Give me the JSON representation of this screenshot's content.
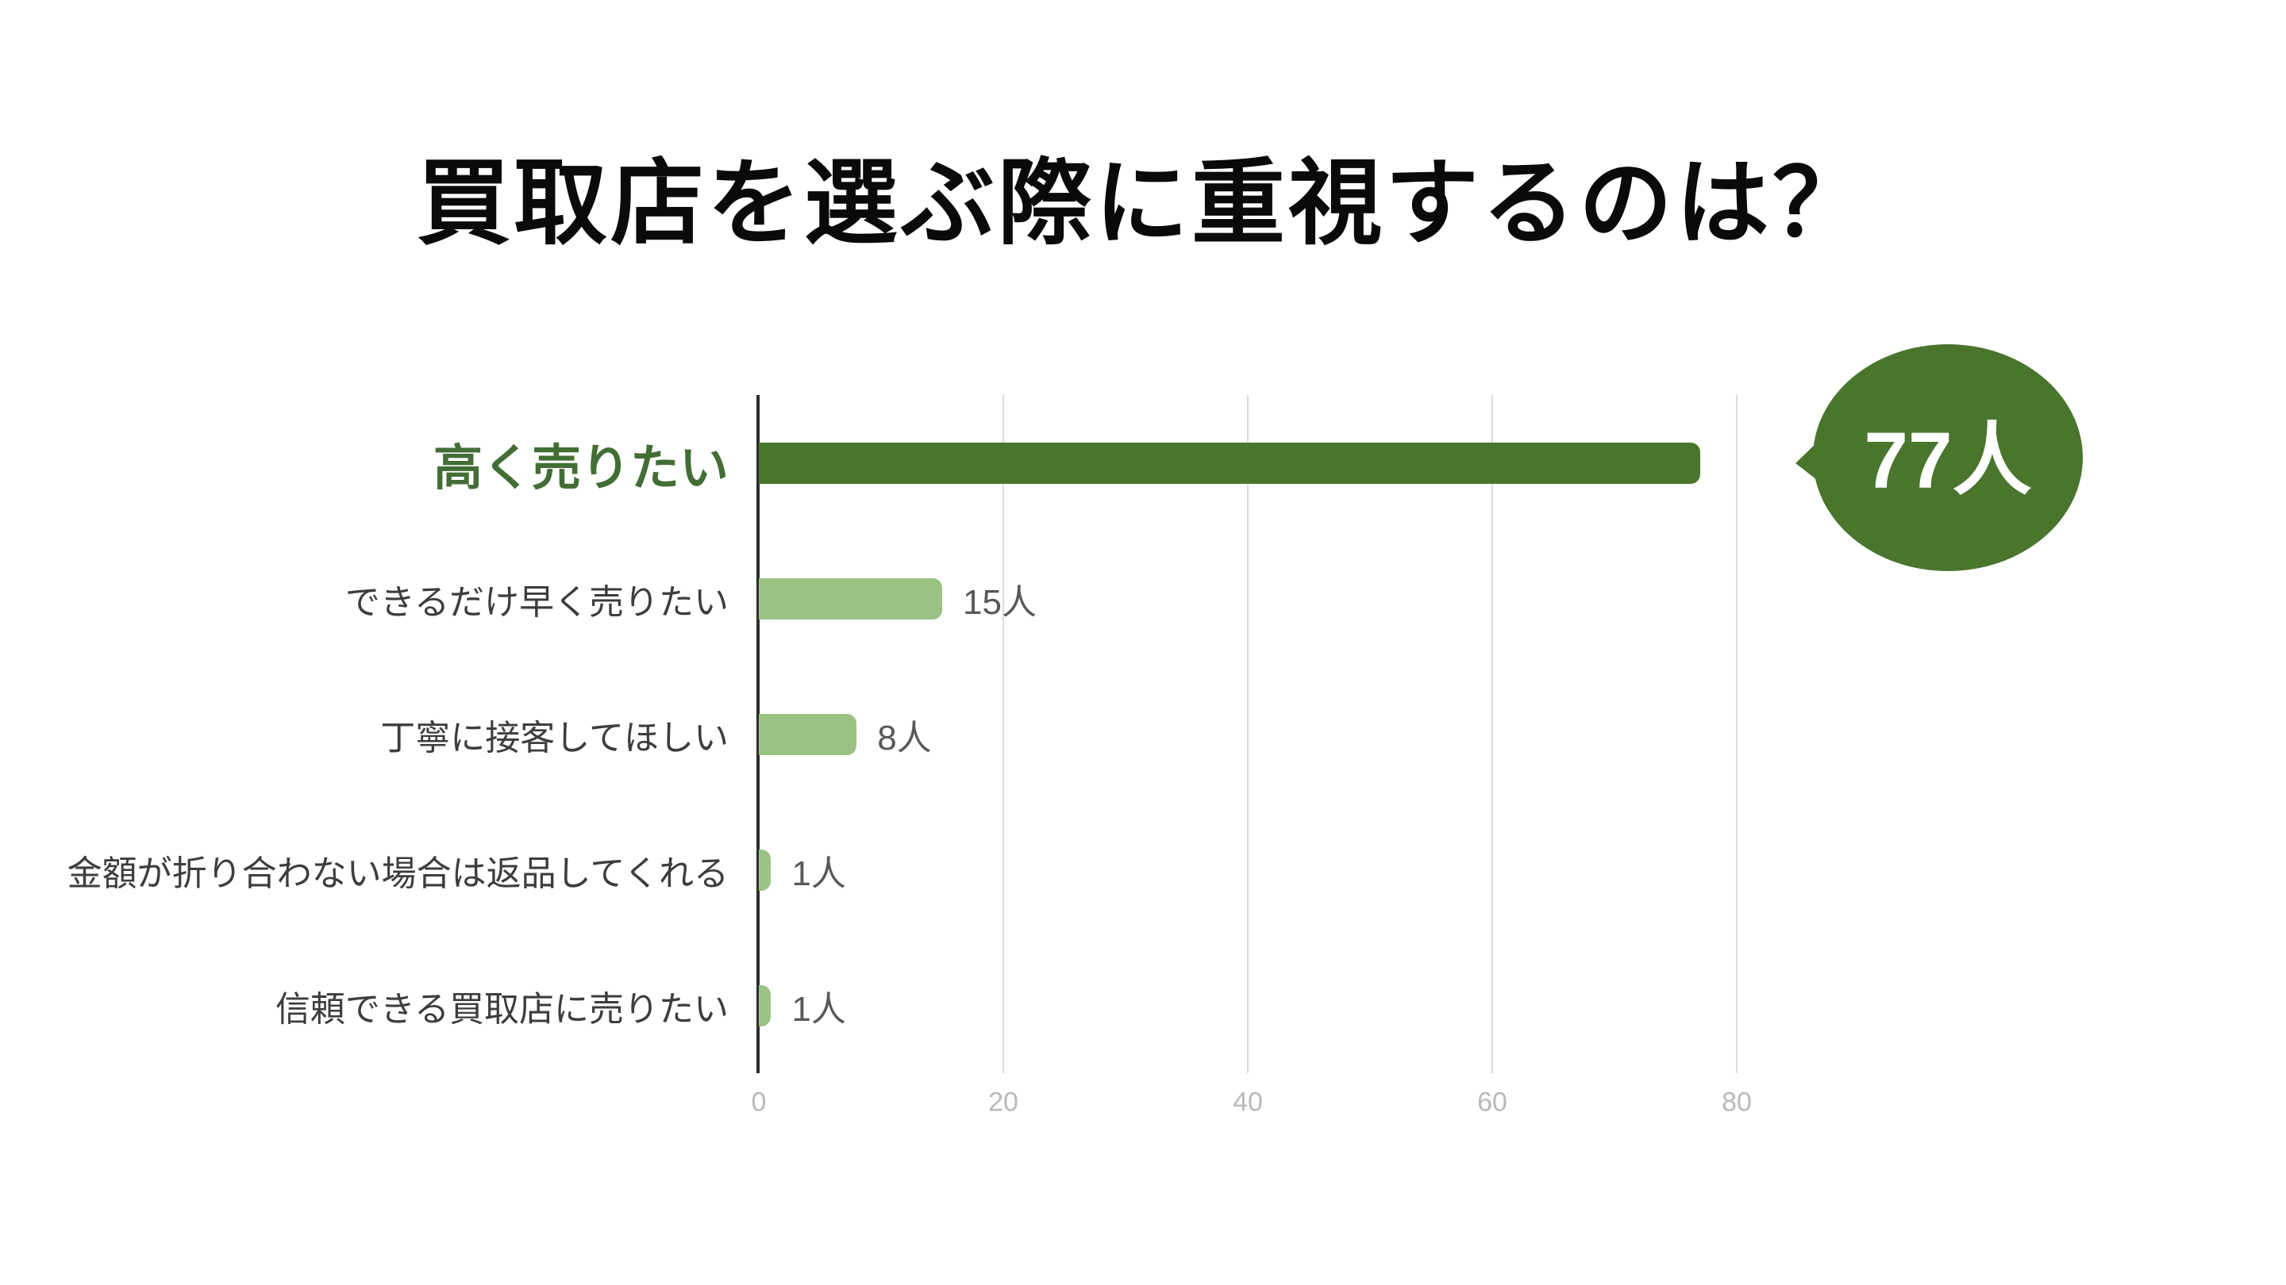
{
  "chart_data": {
    "type": "bar",
    "orientation": "horizontal",
    "title": "買取店を選ぶ際に重視するのは？",
    "categories": [
      "高く売りたい",
      "できるだけ早く売りたい",
      "丁寧に接客してほしい",
      "金額が折り合わない場合は返品してくれる",
      "信頼できる買取店に売りたい"
    ],
    "values": [
      77,
      15,
      8,
      1,
      1
    ],
    "value_labels": [
      "77人",
      "15人",
      "8人",
      "1人",
      "1人"
    ],
    "unit": "人",
    "x_ticks": [
      0,
      20,
      40,
      60,
      80
    ],
    "xlim": [
      0,
      85
    ],
    "grid": "vertical-gridlines",
    "legend": "none",
    "highlight_index": 0,
    "callout": {
      "row": 0,
      "text": "77人"
    }
  },
  "colors": {
    "bar_highlight": "#49752d",
    "bar_normal": "#9cc283",
    "highlight_label_text": "#426e36",
    "category_label_text": "#3d3d3d",
    "value_label_text": "#59595b",
    "tick_label_text": "#b9b9b9",
    "gridline": "#dbdbdb",
    "axis_line": "#2e2e2e",
    "bubble_fill": "#49752d",
    "bubble_text": "#ffffff",
    "title_text": "#0a0a0a",
    "background": "#ffffff"
  }
}
